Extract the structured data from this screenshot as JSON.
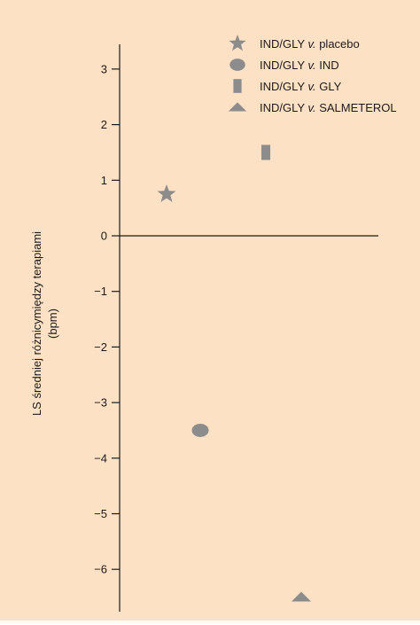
{
  "chart_data": {
    "type": "scatter",
    "title": "",
    "ylabel_lines": [
      "LS średniej różnicymiędzy terapiami",
      "(bpm)"
    ],
    "xlabel": "",
    "ylim": [
      -6.5,
      3.5
    ],
    "yticks": [
      3,
      2,
      1,
      0,
      -1,
      -2,
      -3,
      -4,
      -5,
      -6
    ],
    "ytick_labels": [
      "3",
      "2",
      "1",
      "0",
      "−1",
      "−2",
      "−3",
      "−4",
      "−5",
      "−6"
    ],
    "grid": false,
    "legend_position": "top-right",
    "series": [
      {
        "name_parts": [
          "IND/GLY ",
          "v.",
          " placebo"
        ],
        "marker": "star",
        "x": 1,
        "y": 0.75
      },
      {
        "name_parts": [
          "IND/GLY ",
          "v.",
          " IND"
        ],
        "marker": "circle",
        "x": 2,
        "y": -3.5
      },
      {
        "name_parts": [
          "IND/GLY ",
          "v.",
          " GLY"
        ],
        "marker": "rect",
        "x": 3,
        "y": 1.5
      },
      {
        "name_parts": [
          "IND/GLY ",
          "v.",
          " SALMETEROL"
        ],
        "marker": "triangle",
        "x": 4,
        "y": -6.5
      }
    ],
    "colors": {
      "background": "#fde1c5",
      "marker": "#8c8c8c",
      "axis": "#1a1a1a"
    }
  }
}
